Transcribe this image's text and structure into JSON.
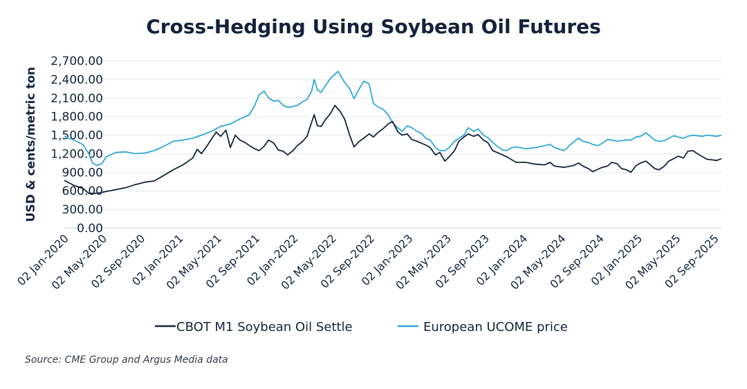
{
  "chart_data": {
    "type": "line",
    "title": "Cross-Hedging Using Soybean Oil Futures",
    "ylabel": "USD & cents/metric ton",
    "ylim": [
      0,
      2700
    ],
    "y_ticks": [
      "0.00",
      "300.00",
      "600.00",
      "900.00",
      "1,200.00",
      "1,500.00",
      "1,800.00",
      "2,100.00",
      "2,400.00",
      "2,700.00"
    ],
    "x_ticks": [
      "02 Jan-2020",
      "02 May-2020",
      "02 Sep-2020",
      "02 Jan-2021",
      "02 May-2021",
      "02 Sep-2021",
      "02 Jan-2022",
      "02 May-2022",
      "02 Sep-2022",
      "02 Jan-2023",
      "02 May-2023",
      "02 Sep-2023",
      "02 Jan-2024",
      "02 May-2024",
      "02 Sep-2024",
      "02 Jan-2025",
      "02 May-2025",
      "02 Sep-2025"
    ],
    "x_range": [
      "2020-01-02",
      "2025-09-30"
    ],
    "grid": true,
    "legend_position": "bottom-center",
    "series": [
      {
        "name": "CBOT M1 Soybean Oil Settle",
        "color": "#14233c",
        "points": [
          [
            "2020-01-02",
            770
          ],
          [
            "2020-02-01",
            690
          ],
          [
            "2020-03-01",
            640
          ],
          [
            "2020-03-20",
            560
          ],
          [
            "2020-04-15",
            560
          ],
          [
            "2020-05-15",
            590
          ],
          [
            "2020-06-15",
            620
          ],
          [
            "2020-07-15",
            650
          ],
          [
            "2020-08-15",
            700
          ],
          [
            "2020-09-15",
            740
          ],
          [
            "2020-10-15",
            760
          ],
          [
            "2020-11-15",
            850
          ],
          [
            "2020-12-15",
            940
          ],
          [
            "2021-01-15",
            1020
          ],
          [
            "2021-02-15",
            1130
          ],
          [
            "2021-03-01",
            1270
          ],
          [
            "2021-03-15",
            1200
          ],
          [
            "2021-04-01",
            1320
          ],
          [
            "2021-04-15",
            1430
          ],
          [
            "2021-05-01",
            1550
          ],
          [
            "2021-05-15",
            1480
          ],
          [
            "2021-06-01",
            1580
          ],
          [
            "2021-06-15",
            1300
          ],
          [
            "2021-07-01",
            1500
          ],
          [
            "2021-07-15",
            1420
          ],
          [
            "2021-08-01",
            1380
          ],
          [
            "2021-08-15",
            1330
          ],
          [
            "2021-09-01",
            1280
          ],
          [
            "2021-09-15",
            1250
          ],
          [
            "2021-10-01",
            1320
          ],
          [
            "2021-10-15",
            1420
          ],
          [
            "2021-11-01",
            1370
          ],
          [
            "2021-11-15",
            1260
          ],
          [
            "2021-12-01",
            1240
          ],
          [
            "2021-12-15",
            1180
          ],
          [
            "2022-01-01",
            1250
          ],
          [
            "2022-01-15",
            1330
          ],
          [
            "2022-02-01",
            1400
          ],
          [
            "2022-02-15",
            1480
          ],
          [
            "2022-03-01",
            1700
          ],
          [
            "2022-03-10",
            1830
          ],
          [
            "2022-03-20",
            1650
          ],
          [
            "2022-04-01",
            1640
          ],
          [
            "2022-04-15",
            1750
          ],
          [
            "2022-05-01",
            1850
          ],
          [
            "2022-05-15",
            1980
          ],
          [
            "2022-06-01",
            1880
          ],
          [
            "2022-06-15",
            1760
          ],
          [
            "2022-07-01",
            1500
          ],
          [
            "2022-07-15",
            1310
          ],
          [
            "2022-08-01",
            1400
          ],
          [
            "2022-08-15",
            1450
          ],
          [
            "2022-09-01",
            1520
          ],
          [
            "2022-09-15",
            1470
          ],
          [
            "2022-10-01",
            1550
          ],
          [
            "2022-10-15",
            1600
          ],
          [
            "2022-11-01",
            1680
          ],
          [
            "2022-11-15",
            1720
          ],
          [
            "2022-12-01",
            1560
          ],
          [
            "2022-12-15",
            1500
          ],
          [
            "2023-01-01",
            1520
          ],
          [
            "2023-01-15",
            1430
          ],
          [
            "2023-02-01",
            1400
          ],
          [
            "2023-02-15",
            1370
          ],
          [
            "2023-03-01",
            1340
          ],
          [
            "2023-03-15",
            1300
          ],
          [
            "2023-04-01",
            1180
          ],
          [
            "2023-04-15",
            1220
          ],
          [
            "2023-05-01",
            1080
          ],
          [
            "2023-05-15",
            1150
          ],
          [
            "2023-06-01",
            1250
          ],
          [
            "2023-06-15",
            1400
          ],
          [
            "2023-07-01",
            1470
          ],
          [
            "2023-07-15",
            1520
          ],
          [
            "2023-08-01",
            1480
          ],
          [
            "2023-08-15",
            1510
          ],
          [
            "2023-09-01",
            1420
          ],
          [
            "2023-09-15",
            1380
          ],
          [
            "2023-10-01",
            1250
          ],
          [
            "2023-10-15",
            1220
          ],
          [
            "2023-11-01",
            1180
          ],
          [
            "2023-11-15",
            1150
          ],
          [
            "2023-12-01",
            1100
          ],
          [
            "2023-12-15",
            1060
          ],
          [
            "2024-01-15",
            1060
          ],
          [
            "2024-02-15",
            1030
          ],
          [
            "2024-03-15",
            1020
          ],
          [
            "2024-04-01",
            1060
          ],
          [
            "2024-04-15",
            1000
          ],
          [
            "2024-05-15",
            980
          ],
          [
            "2024-06-15",
            1010
          ],
          [
            "2024-07-01",
            1050
          ],
          [
            "2024-07-15",
            1000
          ],
          [
            "2024-08-01",
            960
          ],
          [
            "2024-08-15",
            910
          ],
          [
            "2024-09-01",
            950
          ],
          [
            "2024-09-15",
            980
          ],
          [
            "2024-10-01",
            1000
          ],
          [
            "2024-10-15",
            1060
          ],
          [
            "2024-11-01",
            1040
          ],
          [
            "2024-11-15",
            960
          ],
          [
            "2024-12-01",
            940
          ],
          [
            "2024-12-15",
            900
          ],
          [
            "2025-01-01",
            1010
          ],
          [
            "2025-01-15",
            1050
          ],
          [
            "2025-02-01",
            1080
          ],
          [
            "2025-02-15",
            1020
          ],
          [
            "2025-03-01",
            960
          ],
          [
            "2025-03-15",
            940
          ],
          [
            "2025-04-01",
            1000
          ],
          [
            "2025-04-15",
            1080
          ],
          [
            "2025-05-01",
            1120
          ],
          [
            "2025-05-15",
            1160
          ],
          [
            "2025-06-01",
            1130
          ],
          [
            "2025-06-15",
            1240
          ],
          [
            "2025-07-01",
            1250
          ],
          [
            "2025-07-15",
            1200
          ],
          [
            "2025-08-01",
            1150
          ],
          [
            "2025-08-15",
            1110
          ],
          [
            "2025-09-01",
            1100
          ],
          [
            "2025-09-15",
            1090
          ],
          [
            "2025-09-30",
            1120
          ]
        ]
      },
      {
        "name": "European UCOME price",
        "color": "#2ea8d8",
        "points": [
          [
            "2020-01-02",
            1480
          ],
          [
            "2020-02-01",
            1420
          ],
          [
            "2020-03-01",
            1350
          ],
          [
            "2020-03-20",
            1200
          ],
          [
            "2020-04-01",
            1050
          ],
          [
            "2020-04-15",
            1010
          ],
          [
            "2020-05-01",
            1040
          ],
          [
            "2020-05-15",
            1150
          ],
          [
            "2020-06-15",
            1220
          ],
          [
            "2020-07-15",
            1230
          ],
          [
            "2020-08-15",
            1200
          ],
          [
            "2020-09-15",
            1210
          ],
          [
            "2020-10-15",
            1250
          ],
          [
            "2020-11-15",
            1320
          ],
          [
            "2020-12-15",
            1400
          ],
          [
            "2021-01-15",
            1420
          ],
          [
            "2021-02-15",
            1450
          ],
          [
            "2021-03-15",
            1500
          ],
          [
            "2021-04-15",
            1560
          ],
          [
            "2021-05-15",
            1640
          ],
          [
            "2021-06-15",
            1680
          ],
          [
            "2021-07-15",
            1760
          ],
          [
            "2021-08-15",
            1830
          ],
          [
            "2021-09-01",
            1980
          ],
          [
            "2021-09-15",
            2150
          ],
          [
            "2021-10-01",
            2210
          ],
          [
            "2021-10-15",
            2100
          ],
          [
            "2021-11-01",
            2050
          ],
          [
            "2021-11-15",
            2060
          ],
          [
            "2021-12-01",
            1980
          ],
          [
            "2021-12-15",
            1950
          ],
          [
            "2022-01-01",
            1960
          ],
          [
            "2022-01-15",
            1980
          ],
          [
            "2022-02-01",
            2040
          ],
          [
            "2022-02-15",
            2080
          ],
          [
            "2022-03-01",
            2200
          ],
          [
            "2022-03-10",
            2400
          ],
          [
            "2022-03-20",
            2230
          ],
          [
            "2022-04-01",
            2190
          ],
          [
            "2022-04-15",
            2300
          ],
          [
            "2022-05-01",
            2420
          ],
          [
            "2022-05-15",
            2480
          ],
          [
            "2022-05-25",
            2530
          ],
          [
            "2022-06-15",
            2350
          ],
          [
            "2022-07-01",
            2250
          ],
          [
            "2022-07-15",
            2090
          ],
          [
            "2022-08-01",
            2250
          ],
          [
            "2022-08-15",
            2370
          ],
          [
            "2022-09-01",
            2330
          ],
          [
            "2022-09-15",
            2010
          ],
          [
            "2022-10-01",
            1950
          ],
          [
            "2022-10-15",
            1920
          ],
          [
            "2022-11-01",
            1830
          ],
          [
            "2022-11-15",
            1700
          ],
          [
            "2022-12-01",
            1620
          ],
          [
            "2022-12-15",
            1560
          ],
          [
            "2023-01-01",
            1650
          ],
          [
            "2023-01-15",
            1620
          ],
          [
            "2023-02-01",
            1560
          ],
          [
            "2023-02-15",
            1530
          ],
          [
            "2023-03-01",
            1450
          ],
          [
            "2023-03-15",
            1420
          ],
          [
            "2023-04-01",
            1300
          ],
          [
            "2023-04-15",
            1250
          ],
          [
            "2023-05-01",
            1250
          ],
          [
            "2023-05-15",
            1300
          ],
          [
            "2023-06-01",
            1400
          ],
          [
            "2023-06-15",
            1450
          ],
          [
            "2023-07-01",
            1500
          ],
          [
            "2023-07-15",
            1620
          ],
          [
            "2023-08-01",
            1560
          ],
          [
            "2023-08-15",
            1600
          ],
          [
            "2023-09-01",
            1500
          ],
          [
            "2023-09-15",
            1460
          ],
          [
            "2023-10-01",
            1380
          ],
          [
            "2023-10-15",
            1320
          ],
          [
            "2023-11-01",
            1260
          ],
          [
            "2023-11-15",
            1250
          ],
          [
            "2023-12-01",
            1300
          ],
          [
            "2023-12-15",
            1310
          ],
          [
            "2024-01-15",
            1280
          ],
          [
            "2024-02-15",
            1300
          ],
          [
            "2024-03-15",
            1330
          ],
          [
            "2024-04-01",
            1350
          ],
          [
            "2024-04-15",
            1300
          ],
          [
            "2024-05-15",
            1250
          ],
          [
            "2024-06-15",
            1390
          ],
          [
            "2024-07-01",
            1450
          ],
          [
            "2024-07-15",
            1400
          ],
          [
            "2024-08-01",
            1380
          ],
          [
            "2024-08-15",
            1350
          ],
          [
            "2024-09-01",
            1330
          ],
          [
            "2024-09-15",
            1370
          ],
          [
            "2024-10-01",
            1430
          ],
          [
            "2024-10-15",
            1420
          ],
          [
            "2024-11-01",
            1400
          ],
          [
            "2024-11-15",
            1410
          ],
          [
            "2024-12-01",
            1420
          ],
          [
            "2024-12-15",
            1420
          ],
          [
            "2025-01-01",
            1470
          ],
          [
            "2025-01-15",
            1480
          ],
          [
            "2025-02-01",
            1540
          ],
          [
            "2025-02-15",
            1480
          ],
          [
            "2025-03-01",
            1420
          ],
          [
            "2025-03-15",
            1400
          ],
          [
            "2025-04-01",
            1410
          ],
          [
            "2025-04-15",
            1450
          ],
          [
            "2025-05-01",
            1490
          ],
          [
            "2025-05-15",
            1470
          ],
          [
            "2025-06-01",
            1450
          ],
          [
            "2025-06-15",
            1480
          ],
          [
            "2025-07-01",
            1500
          ],
          [
            "2025-07-15",
            1490
          ],
          [
            "2025-08-01",
            1480
          ],
          [
            "2025-08-15",
            1500
          ],
          [
            "2025-09-01",
            1490
          ],
          [
            "2025-09-15",
            1480
          ],
          [
            "2025-09-30",
            1500
          ]
        ]
      }
    ]
  },
  "source_note": "Source: CME Group and Argus Media data"
}
